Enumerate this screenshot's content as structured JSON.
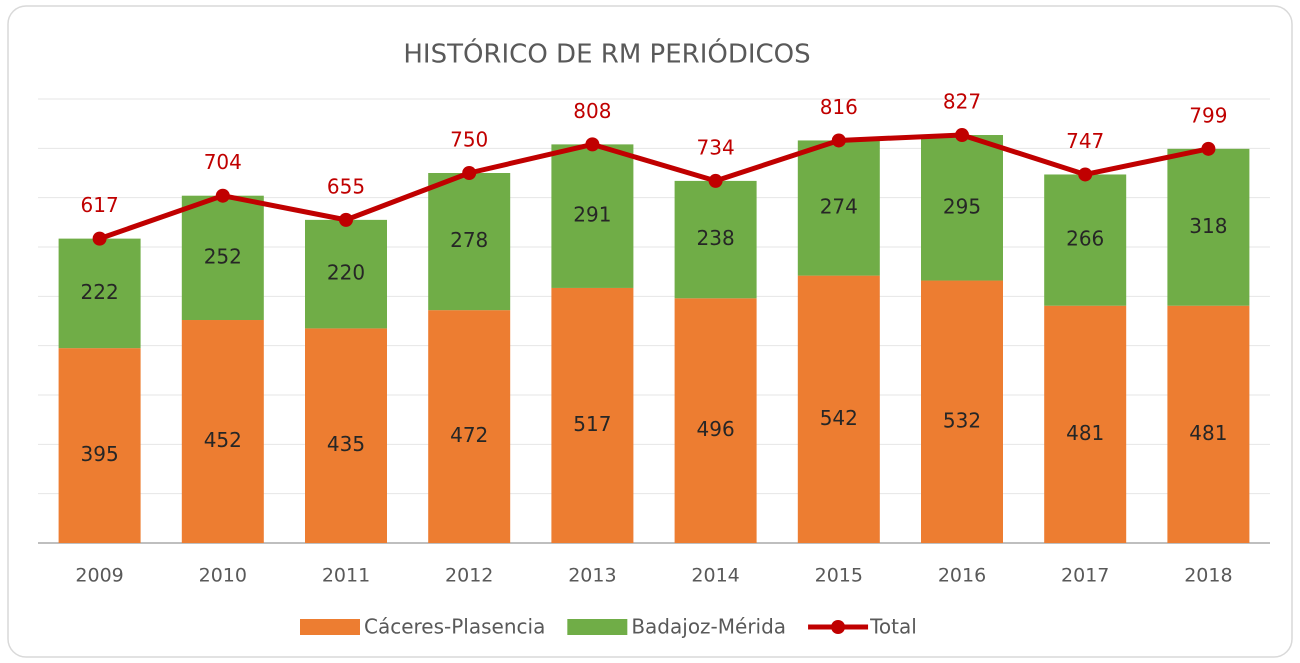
{
  "chart_data": {
    "type": "bar",
    "stacked": true,
    "title": "HISTÓRICO DE RM PERIÓDICOS",
    "categories": [
      "2009",
      "2010",
      "2011",
      "2012",
      "2013",
      "2014",
      "2015",
      "2016",
      "2017",
      "2018"
    ],
    "series": [
      {
        "name": "Cáceres-Plasencia",
        "type": "bar",
        "color": "#ed7d31",
        "values": [
          395,
          452,
          435,
          472,
          517,
          496,
          542,
          532,
          481,
          481
        ]
      },
      {
        "name": "Badajoz-Mérida",
        "type": "bar",
        "color": "#70ad47",
        "values": [
          222,
          252,
          220,
          278,
          291,
          238,
          274,
          295,
          266,
          318
        ]
      },
      {
        "name": "Total",
        "type": "line",
        "color": "#c00000",
        "values": [
          617,
          704,
          655,
          750,
          808,
          734,
          816,
          827,
          747,
          799
        ]
      }
    ],
    "ylim": [
      0,
      900
    ],
    "yticks": [
      0,
      100,
      200,
      300,
      400,
      500,
      600,
      700,
      800,
      900
    ],
    "grid": true,
    "legend": "bottom"
  }
}
